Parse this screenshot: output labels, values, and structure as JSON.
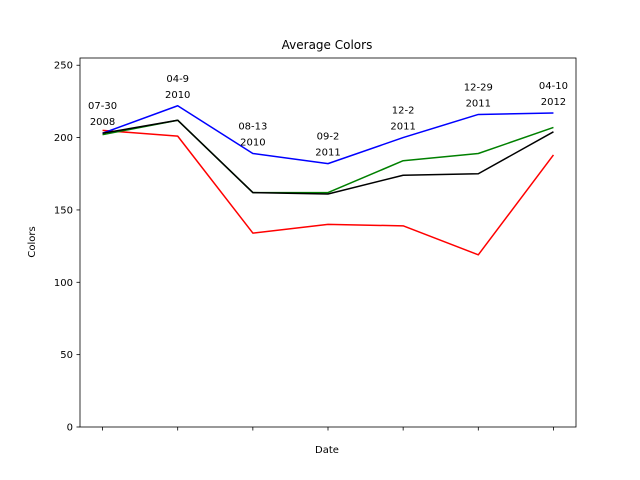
{
  "chart_data": {
    "type": "line",
    "title": "Average Colors",
    "xlabel": "Date",
    "ylabel": "Colors",
    "ylim": [
      0,
      255
    ],
    "yticks": [
      0,
      50,
      100,
      150,
      200,
      250
    ],
    "grid": false,
    "x": [
      0,
      1,
      2,
      3,
      4,
      5,
      6
    ],
    "point_labels": [
      [
        "07-30",
        "2008"
      ],
      [
        "04-9",
        "2010"
      ],
      [
        "08-13",
        "2010"
      ],
      [
        "09-2",
        "2011"
      ],
      [
        "12-2",
        "2011"
      ],
      [
        "12-29",
        "2011"
      ],
      [
        "04-10",
        "2012"
      ]
    ],
    "series": [
      {
        "color": "#ff0000",
        "values": [
          205,
          201,
          134,
          140,
          139,
          119,
          188
        ]
      },
      {
        "color": "#008000",
        "values": [
          202,
          212,
          162,
          162,
          184,
          189,
          207
        ]
      },
      {
        "color": "#0000ff",
        "values": [
          203,
          222,
          189,
          182,
          200,
          216,
          217
        ]
      },
      {
        "color": "#000000",
        "values": [
          203,
          212,
          162,
          161,
          174,
          175,
          204
        ]
      }
    ]
  }
}
